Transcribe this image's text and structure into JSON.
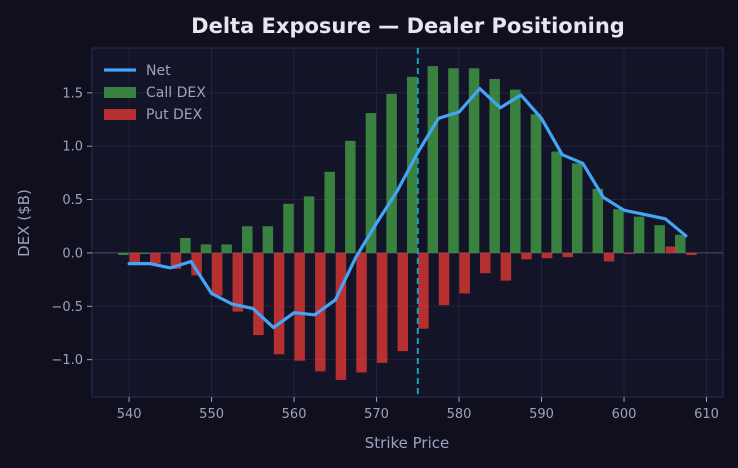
{
  "chart_data": {
    "type": "bar",
    "title": "Delta Exposure — Dealer Positioning",
    "xlabel": "Strike Price",
    "ylabel": "DEX ($B)",
    "xlim": [
      535.5,
      612
    ],
    "ylim": [
      -1.35,
      1.92
    ],
    "xticks": [
      540,
      550,
      560,
      570,
      580,
      590,
      600,
      610
    ],
    "yticks": [
      -1.0,
      -0.5,
      0.0,
      0.5,
      1.0,
      1.5
    ],
    "ytick_labels": [
      "−1.0",
      "−0.5",
      "0.0",
      "0.5",
      "1.0",
      "1.5"
    ],
    "grid": true,
    "legend": "top-left",
    "spot_line_x": 575,
    "x": [
      540,
      542.5,
      545,
      547.5,
      550,
      552.5,
      555,
      557.5,
      560,
      562.5,
      565,
      567.5,
      570,
      572.5,
      575,
      577.5,
      580,
      582.5,
      585,
      587.5,
      590,
      592.5,
      595,
      597.5,
      600,
      602.5,
      605,
      607.5
    ],
    "series": [
      {
        "name": "Net",
        "kind": "line",
        "color": "#42a5f5",
        "values": [
          -0.1,
          -0.1,
          -0.14,
          -0.08,
          -0.38,
          -0.48,
          -0.52,
          -0.7,
          -0.56,
          -0.58,
          -0.44,
          -0.04,
          0.28,
          0.58,
          0.94,
          1.26,
          1.32,
          1.54,
          1.36,
          1.48,
          1.26,
          0.92,
          0.84,
          0.52,
          0.4,
          0.36,
          0.32,
          0.16
        ]
      },
      {
        "name": "Call DEX",
        "kind": "bar",
        "color": "#43a047",
        "values": [
          -0.02,
          -0.01,
          0.0,
          0.14,
          0.08,
          0.08,
          0.25,
          0.25,
          0.46,
          0.53,
          0.76,
          1.05,
          1.31,
          1.49,
          1.65,
          1.75,
          1.73,
          1.73,
          1.63,
          1.53,
          1.3,
          0.95,
          0.84,
          0.6,
          0.41,
          0.34,
          0.26,
          0.17
        ]
      },
      {
        "name": "Put DEX",
        "kind": "bar",
        "color": "#e53935",
        "values": [
          -0.1,
          -0.1,
          -0.15,
          -0.21,
          -0.4,
          -0.55,
          -0.77,
          -0.95,
          -1.01,
          -1.11,
          -1.19,
          -1.12,
          -1.03,
          -0.92,
          -0.71,
          -0.49,
          -0.38,
          -0.19,
          -0.26,
          -0.06,
          -0.05,
          -0.04,
          0.0,
          -0.08,
          -0.01,
          0.0,
          0.06,
          -0.02
        ]
      }
    ]
  },
  "colors": {
    "background": "#0f0f1e",
    "plot_background": "#141428",
    "grid": "#25253f",
    "spine": "#2e2e4e",
    "text": "#a0a0c0",
    "title": "#e6e6ee",
    "spot_line": "#17a2b8"
  }
}
